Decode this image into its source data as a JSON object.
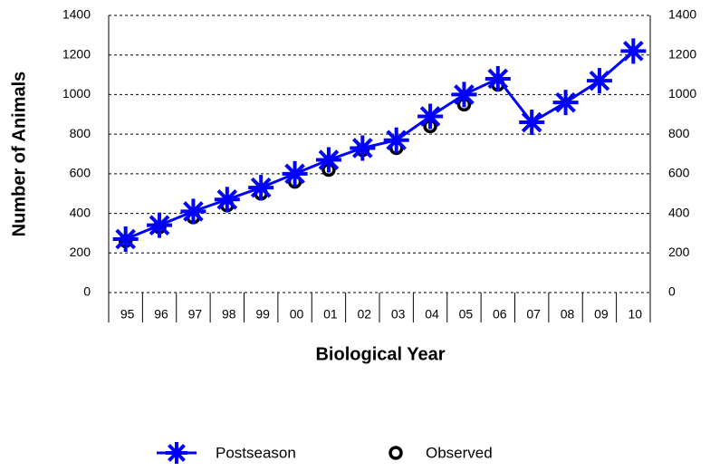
{
  "chart_data": {
    "type": "line",
    "x_label": "Biological Year",
    "y_label": "Number of Animals",
    "categories": [
      "95",
      "96",
      "97",
      "98",
      "99",
      "00",
      "01",
      "02",
      "03",
      "04",
      "05",
      "06",
      "07",
      "08",
      "09",
      "10"
    ],
    "series": [
      {
        "name": "Postseason",
        "color": "#0000ff",
        "marker": "star",
        "values": [
          270,
          340,
          410,
          470,
          530,
          600,
          670,
          730,
          770,
          890,
          1000,
          1080,
          860,
          960,
          1070,
          1220
        ]
      },
      {
        "name": "Observed",
        "color": "#000000",
        "marker": "circle",
        "values": [
          260,
          330,
          380,
          440,
          500,
          560,
          620,
          720,
          730,
          840,
          950,
          1050,
          null,
          null,
          null,
          null
        ]
      }
    ],
    "ylim": [
      0,
      1400
    ],
    "yticks": [
      0,
      200,
      400,
      600,
      800,
      1000,
      1200,
      1400
    ],
    "grid": true
  }
}
